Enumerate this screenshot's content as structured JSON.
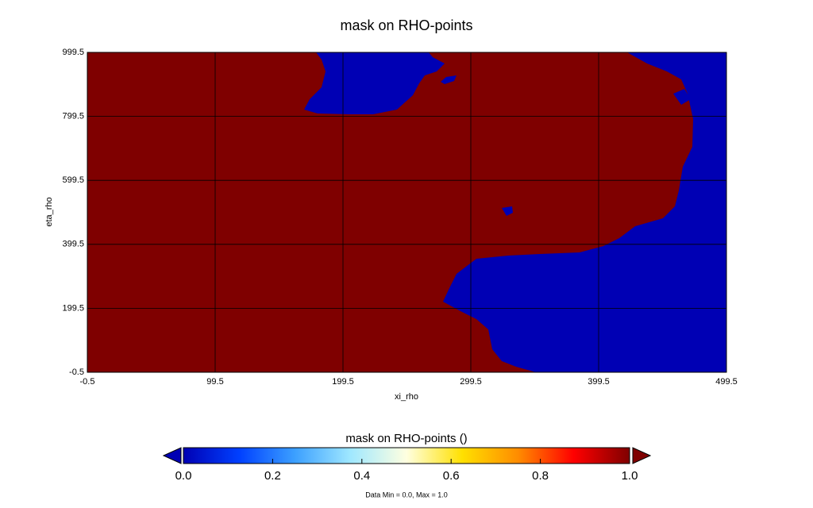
{
  "chart_data": {
    "type": "heatmap",
    "title": "mask on RHO-points",
    "x_label": "xi_rho",
    "y_label": "eta_rho",
    "xlim": [
      -0.5,
      499.5
    ],
    "xticks": [
      -0.5,
      99.5,
      199.5,
      299.5,
      399.5,
      499.5
    ],
    "ylim": [
      -0.5,
      999.5
    ],
    "yticks": [
      -0.5,
      199.5,
      399.5,
      599.5,
      799.5,
      999.5
    ],
    "grid": true,
    "colorbar": {
      "title": "mask on RHO-points ()",
      "lim": [
        0,
        1
      ],
      "ticks": [
        {
          "value": 0,
          "label": "0.0"
        },
        {
          "value": 0.2,
          "label": "0.2"
        },
        {
          "value": 0.4,
          "label": "0.4"
        },
        {
          "value": 0.6,
          "label": "0.6"
        },
        {
          "value": 0.8,
          "label": "0.8"
        },
        {
          "value": 1,
          "label": "1.0"
        }
      ],
      "colormap": [
        "#0000b4",
        "#0040ff",
        "#3ca0ff",
        "#a0e8ff",
        "#ffffe0",
        "#ffe000",
        "#ff8c00",
        "#ff0000",
        "#7f0000"
      ]
    },
    "note": "Data Min = 0.0, Max = 1.0"
  }
}
